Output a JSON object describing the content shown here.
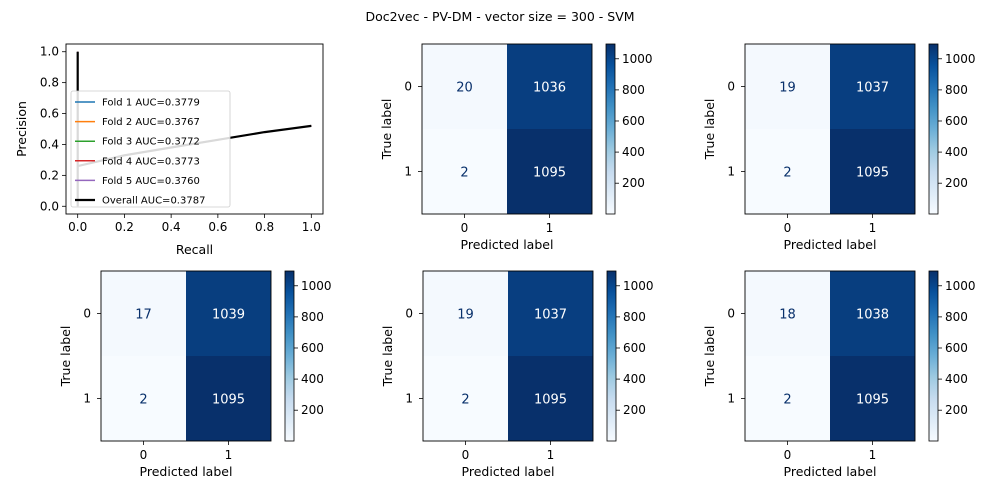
{
  "figure_title": "Doc2vec - PV-DM - vector size = 300 - SVM",
  "colors": {
    "axis": "#000000",
    "cell_text_dark": "#08306b",
    "cell_text_light": "#ffffff",
    "fold_colors": [
      "#1f77b4",
      "#ff7f0e",
      "#2ca02c",
      "#d62728",
      "#9467bd"
    ],
    "overall": "#000000"
  },
  "chart_data": [
    {
      "type": "line",
      "title": "",
      "xlabel": "Recall",
      "ylabel": "Precision",
      "xlim": [
        -0.05,
        1.05
      ],
      "ylim": [
        -0.05,
        1.05
      ],
      "xticks": [
        "0.0",
        "0.2",
        "0.4",
        "0.6",
        "0.8",
        "1.0"
      ],
      "yticks": [
        "0.0",
        "0.2",
        "0.4",
        "0.6",
        "0.8",
        "1.0"
      ],
      "legend_position": "lower-center-left",
      "series": [
        {
          "name": "Fold 1 AUC=0.3779",
          "x": [
            0,
            0,
            0.0,
            0.2,
            0.4,
            0.6,
            0.8,
            1.0
          ],
          "y": [
            1.0,
            0.0,
            0.26,
            0.33,
            0.38,
            0.43,
            0.48,
            0.52
          ]
        },
        {
          "name": "Fold 2 AUC=0.3767",
          "x": [
            0,
            0,
            0.0,
            0.2,
            0.4,
            0.6,
            0.8,
            1.0
          ],
          "y": [
            1.0,
            0.0,
            0.26,
            0.33,
            0.38,
            0.43,
            0.48,
            0.52
          ]
        },
        {
          "name": "Fold 3 AUC=0.3772",
          "x": [
            0,
            0,
            0.0,
            0.2,
            0.4,
            0.6,
            0.8,
            1.0
          ],
          "y": [
            1.0,
            0.0,
            0.26,
            0.33,
            0.38,
            0.43,
            0.48,
            0.52
          ]
        },
        {
          "name": "Fold 4 AUC=0.3773",
          "x": [
            0,
            0,
            0.0,
            0.2,
            0.4,
            0.6,
            0.8,
            1.0
          ],
          "y": [
            1.0,
            0.0,
            0.26,
            0.33,
            0.38,
            0.43,
            0.48,
            0.52
          ]
        },
        {
          "name": "Fold 5 AUC=0.3760",
          "x": [
            0,
            0,
            0.0,
            0.2,
            0.4,
            0.6,
            0.8,
            1.0
          ],
          "y": [
            1.0,
            0.0,
            0.26,
            0.33,
            0.38,
            0.43,
            0.48,
            0.52
          ]
        },
        {
          "name": "Overall AUC=0.3787",
          "x": [
            0,
            0,
            0.0,
            0.2,
            0.4,
            0.6,
            0.8,
            1.0
          ],
          "y": [
            1.0,
            0.0,
            0.26,
            0.33,
            0.38,
            0.43,
            0.48,
            0.52
          ]
        }
      ]
    },
    {
      "type": "heatmap",
      "xlabel": "Predicted label",
      "ylabel": "True label",
      "x_categories": [
        "0",
        "1"
      ],
      "y_categories": [
        "0",
        "1"
      ],
      "matrix": [
        [
          20,
          1036
        ],
        [
          2,
          1095
        ]
      ],
      "colorbar_ticks": [
        200,
        400,
        600,
        800,
        1000
      ],
      "colormap": "Blues"
    },
    {
      "type": "heatmap",
      "xlabel": "Predicted label",
      "ylabel": "True label",
      "x_categories": [
        "0",
        "1"
      ],
      "y_categories": [
        "0",
        "1"
      ],
      "matrix": [
        [
          19,
          1037
        ],
        [
          2,
          1095
        ]
      ],
      "colorbar_ticks": [
        200,
        400,
        600,
        800,
        1000
      ],
      "colormap": "Blues"
    },
    {
      "type": "heatmap",
      "xlabel": "Predicted label",
      "ylabel": "True label",
      "x_categories": [
        "0",
        "1"
      ],
      "y_categories": [
        "0",
        "1"
      ],
      "matrix": [
        [
          17,
          1039
        ],
        [
          2,
          1095
        ]
      ],
      "colorbar_ticks": [
        200,
        400,
        600,
        800,
        1000
      ],
      "colormap": "Blues"
    },
    {
      "type": "heatmap",
      "xlabel": "Predicted label",
      "ylabel": "True label",
      "x_categories": [
        "0",
        "1"
      ],
      "y_categories": [
        "0",
        "1"
      ],
      "matrix": [
        [
          19,
          1037
        ],
        [
          2,
          1095
        ]
      ],
      "colorbar_ticks": [
        200,
        400,
        600,
        800,
        1000
      ],
      "colormap": "Blues"
    },
    {
      "type": "heatmap",
      "xlabel": "Predicted label",
      "ylabel": "True label",
      "x_categories": [
        "0",
        "1"
      ],
      "y_categories": [
        "0",
        "1"
      ],
      "matrix": [
        [
          18,
          1038
        ],
        [
          2,
          1095
        ]
      ],
      "colorbar_ticks": [
        200,
        400,
        600,
        800,
        1000
      ],
      "colormap": "Blues"
    }
  ]
}
